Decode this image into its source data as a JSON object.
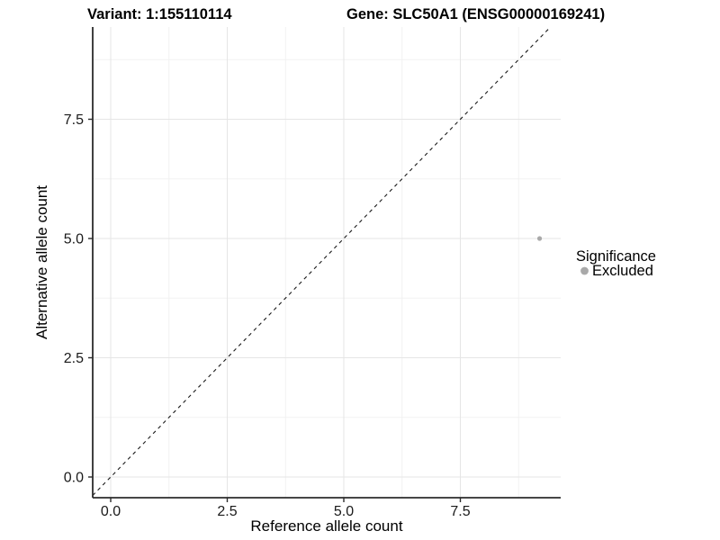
{
  "chart_data": {
    "type": "scatter",
    "title_left": "Variant: 1:155110114",
    "title_right": "Gene: SLC50A1 (ENSG00000169241)",
    "xlabel": "Reference allele count",
    "ylabel": "Alternative allele count",
    "xlim": [
      -0.386,
      9.652
    ],
    "ylim": [
      -0.434,
      9.434
    ],
    "x_ticks": {
      "values": [
        0,
        2.5,
        5,
        7.5
      ],
      "labels": [
        "0.0",
        "2.5",
        "5.0",
        "7.5"
      ]
    },
    "y_ticks": {
      "values": [
        0,
        2.5,
        5,
        7.5
      ],
      "labels": [
        "0.0",
        "2.5",
        "5.0",
        "7.5"
      ]
    },
    "x_minor": [
      1.25,
      3.75,
      6.25,
      8.75
    ],
    "y_minor": [
      1.25,
      3.75,
      6.25,
      8.75
    ],
    "grid": true,
    "identity_line": {
      "slope": 1,
      "intercept": 0,
      "style": "dashed",
      "color": "#1a1a1a"
    },
    "series": [
      {
        "name": "Excluded",
        "color": "#a9a9a9",
        "points": [
          [
            9.2,
            5.0
          ]
        ]
      }
    ],
    "legend": {
      "title": "Significance",
      "position": "right"
    },
    "colors": {
      "grid_major": "#e5e5e5",
      "grid_minor": "#f2f2f2",
      "axis_line": "#2b2b2b",
      "excluded": "#a9a9a9"
    }
  }
}
